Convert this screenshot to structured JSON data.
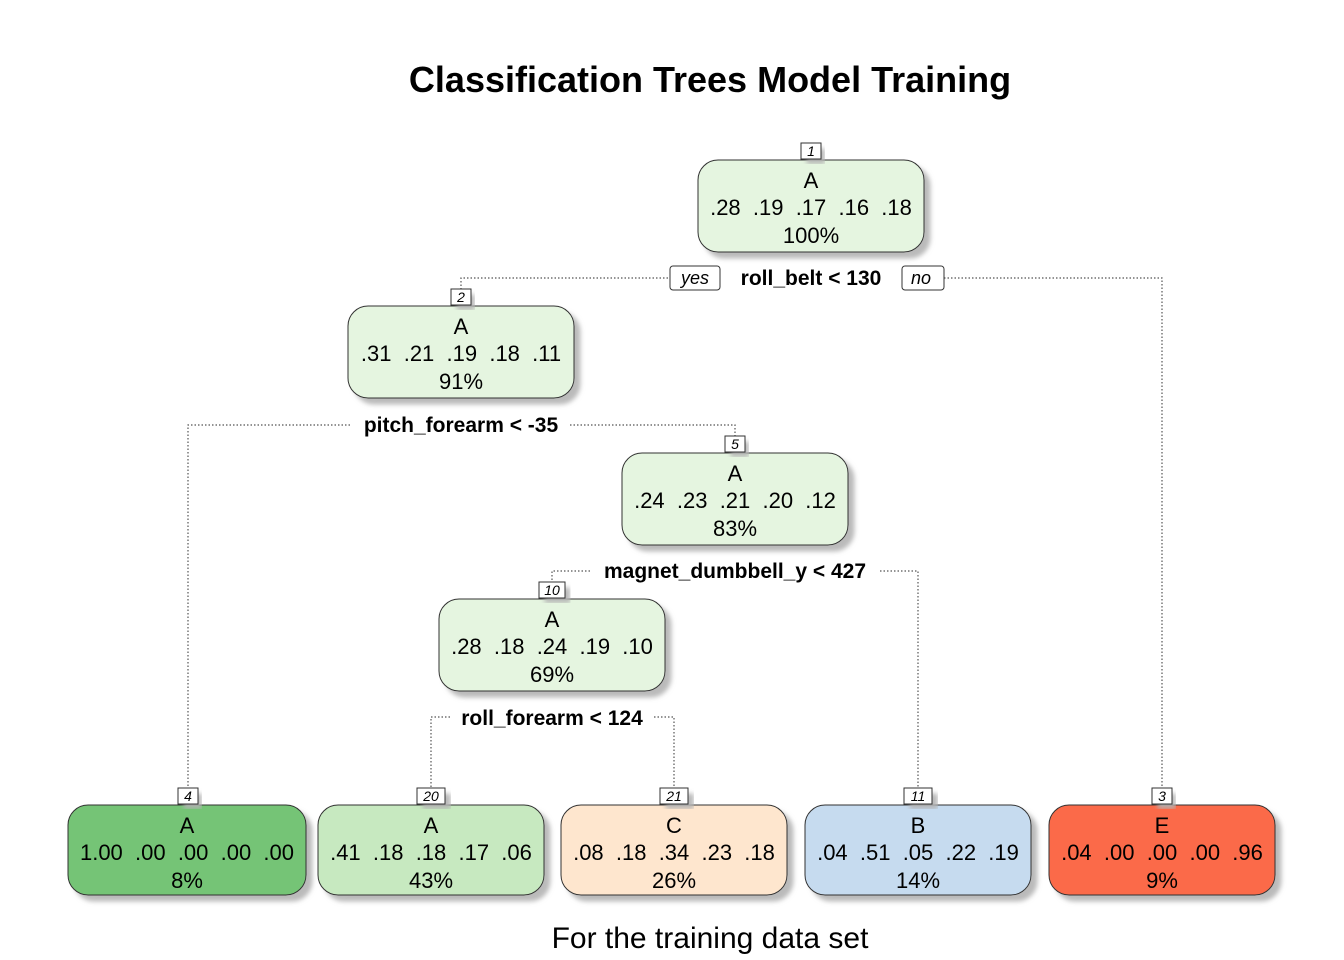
{
  "title": "Classification Trees Model Training",
  "subtitle": "For the training data set",
  "colors": {
    "A_light": "#e5f5e0",
    "A_mid": "#c7e9c0",
    "A_strong": "#74c476",
    "C": "#fee6ce",
    "B": "#c6dbef",
    "E": "#fb6a4a"
  },
  "nodes": {
    "n1": {
      "num": "1",
      "label": "A",
      "probs": ".28  .19  .17  .16  .18",
      "pct": "100%"
    },
    "n2": {
      "num": "2",
      "label": "A",
      "probs": ".31  .21  .19  .18  .11",
      "pct": "91%"
    },
    "n5": {
      "num": "5",
      "label": "A",
      "probs": ".24  .23  .21  .20  .12",
      "pct": "83%"
    },
    "n10": {
      "num": "10",
      "label": "A",
      "probs": ".28  .18  .24  .19  .10",
      "pct": "69%"
    },
    "n4": {
      "num": "4",
      "label": "A",
      "probs": "1.00  .00  .00  .00  .00",
      "pct": "8%"
    },
    "n20": {
      "num": "20",
      "label": "A",
      "probs": ".41  .18  .18  .17  .06",
      "pct": "43%"
    },
    "n21": {
      "num": "21",
      "label": "C",
      "probs": ".08  .18  .34  .23  .18",
      "pct": "26%"
    },
    "n11": {
      "num": "11",
      "label": "B",
      "probs": ".04  .51  .05  .22  .19",
      "pct": "14%"
    },
    "n3": {
      "num": "3",
      "label": "E",
      "probs": ".04  .00  .00  .00  .96",
      "pct": "9%"
    }
  },
  "splits": {
    "s1": "roll_belt < 130",
    "s2": "pitch_forearm < -35",
    "s5": "magnet_dumbbell_y < 427",
    "s10": "roll_forearm < 124"
  },
  "branch_labels": {
    "yes": "yes",
    "no": "no"
  }
}
